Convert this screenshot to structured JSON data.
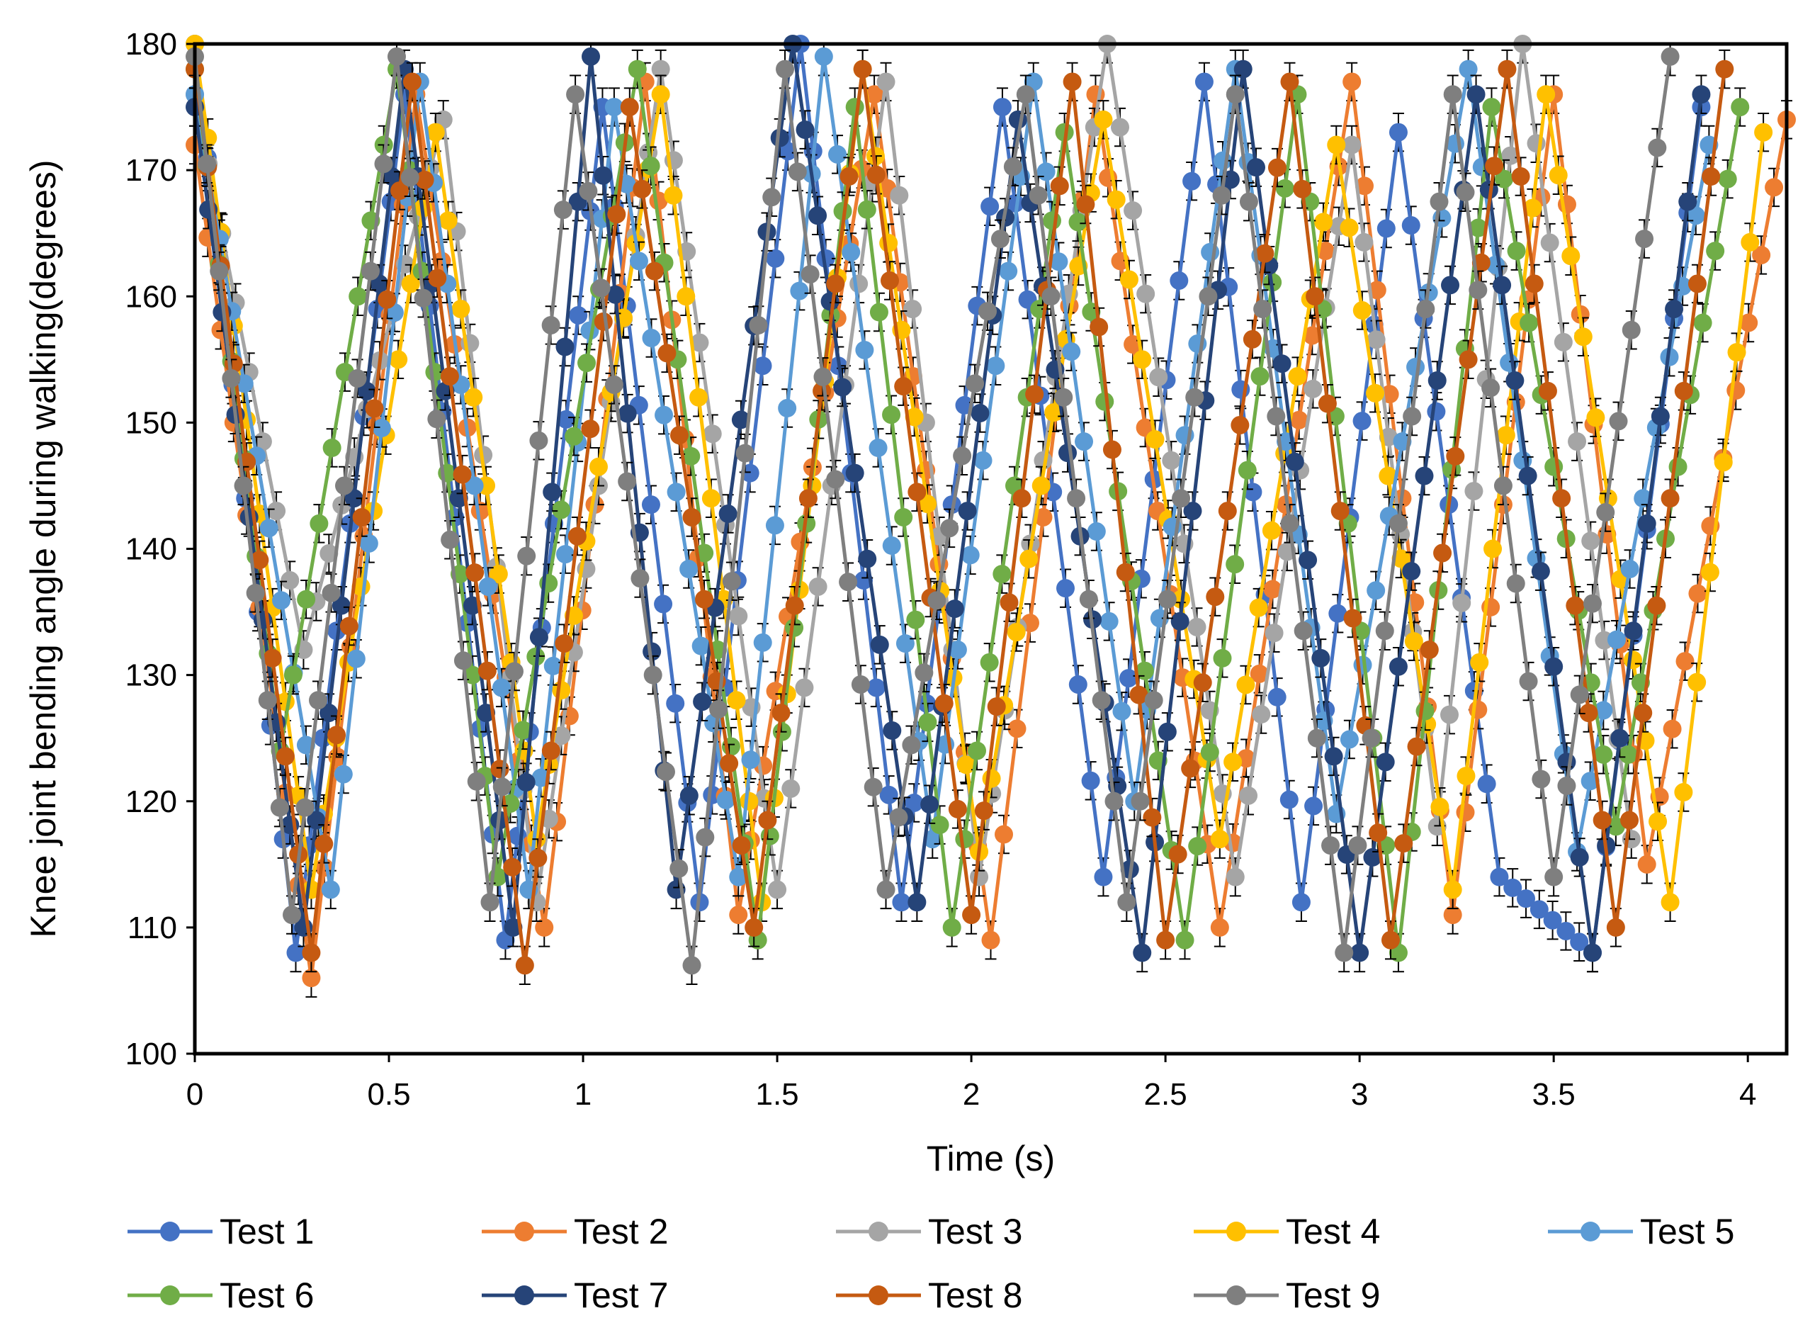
{
  "chart_data": {
    "type": "line",
    "title": "",
    "xlabel": "Time (s)",
    "ylabel": "Knee joint bending angle during walking(degrees)",
    "xlim": [
      0,
      4.1
    ],
    "ylim": [
      100,
      180
    ],
    "xticks": [
      0,
      0.5,
      1,
      1.5,
      2,
      2.5,
      3,
      3.5,
      4
    ],
    "xtick_labels": [
      "0",
      "0.5",
      "1",
      "1.5",
      "2",
      "2.5",
      "3",
      "3.5",
      "4"
    ],
    "yticks": [
      100,
      110,
      120,
      130,
      140,
      150,
      160,
      170,
      180
    ],
    "ytick_labels": [
      "100",
      "110",
      "120",
      "130",
      "140",
      "150",
      "160",
      "170",
      "180"
    ],
    "error_bar": 1.5,
    "legend_position": "bottom",
    "series": [
      {
        "name": "Test 1",
        "color": "#4472C4",
        "x": [
          0,
          0.26,
          0.54,
          0.8,
          1.05,
          1.3,
          1.56,
          1.82,
          2.08,
          2.34,
          2.6,
          2.85,
          3.1,
          3.36,
          3.6,
          3.88
        ],
        "y": [
          180,
          108,
          176,
          109,
          175,
          112,
          180,
          112,
          175,
          114,
          177,
          112,
          173,
          114,
          108,
          175
        ]
      },
      {
        "name": "Test 2",
        "color": "#ED7D31",
        "x": [
          0,
          0.3,
          0.57,
          0.9,
          1.16,
          1.4,
          1.75,
          2.05,
          2.32,
          2.64,
          2.98,
          3.24,
          3.5,
          3.74,
          4.1
        ],
        "y": [
          172,
          106,
          176,
          110,
          177,
          111,
          176,
          109,
          176,
          110,
          177,
          111,
          176,
          115,
          174
        ]
      },
      {
        "name": "Test 3",
        "color": "#A5A5A5",
        "x": [
          0,
          0.28,
          0.64,
          0.88,
          1.2,
          1.5,
          1.78,
          2.02,
          2.35,
          2.68,
          2.98,
          3.2,
          3.42,
          3.7
        ],
        "y": [
          176,
          132,
          174,
          112,
          178,
          113,
          177,
          114,
          180,
          114,
          172,
          118,
          180,
          117
        ]
      },
      {
        "name": "Test 4",
        "color": "#FFC000",
        "x": [
          0,
          0.3,
          0.62,
          0.88,
          1.2,
          1.46,
          1.72,
          2.02,
          2.34,
          2.64,
          2.94,
          3.24,
          3.48,
          3.8,
          4.04
        ],
        "y": [
          180,
          113,
          173,
          117,
          176,
          112,
          178,
          116,
          174,
          117,
          172,
          113,
          176,
          112,
          173
        ]
      },
      {
        "name": "Test 5",
        "color": "#5B9BD5",
        "x": [
          0,
          0.35,
          0.58,
          0.86,
          1.08,
          1.4,
          1.62,
          1.9,
          2.16,
          2.42,
          2.68,
          2.94,
          3.28,
          3.56,
          3.9
        ],
        "y": [
          176,
          113,
          177,
          113,
          175,
          114,
          179,
          117,
          177,
          120,
          178,
          119,
          178,
          116,
          172
        ]
      },
      {
        "name": "Test 6",
        "color": "#70AD47",
        "x": [
          0,
          0.22,
          0.52,
          0.78,
          1.14,
          1.45,
          1.7,
          1.95,
          2.24,
          2.55,
          2.84,
          3.1,
          3.34,
          3.66,
          3.98
        ],
        "y": [
          178,
          124,
          178,
          114,
          178,
          109,
          175,
          110,
          173,
          109,
          176,
          108,
          175,
          118,
          175
        ]
      },
      {
        "name": "Test 7",
        "color": "#264478",
        "x": [
          0,
          0.28,
          0.54,
          0.82,
          1.02,
          1.24,
          1.54,
          1.86,
          2.12,
          2.44,
          2.7,
          3.0,
          3.3,
          3.6,
          3.88
        ],
        "y": [
          175,
          110,
          178,
          110,
          179,
          113,
          180,
          112,
          174,
          108,
          178,
          108,
          176,
          108,
          176
        ]
      },
      {
        "name": "Test 8",
        "color": "#C55A11",
        "x": [
          0,
          0.3,
          0.56,
          0.85,
          1.12,
          1.44,
          1.72,
          2.0,
          2.26,
          2.5,
          2.82,
          3.08,
          3.38,
          3.66,
          3.94
        ],
        "y": [
          178,
          108,
          177,
          107,
          175,
          110,
          178,
          111,
          177,
          109,
          177,
          109,
          178,
          110,
          178
        ]
      },
      {
        "name": "Test 9",
        "color": "#7F7F7F",
        "x": [
          0,
          0.25,
          0.52,
          0.76,
          0.98,
          1.28,
          1.52,
          1.78,
          2.14,
          2.4,
          2.68,
          2.96,
          3.24,
          3.5,
          3.8
        ],
        "y": [
          179,
          111,
          179,
          112,
          176,
          107,
          178,
          113,
          176,
          112,
          176,
          108,
          176,
          114,
          179
        ]
      }
    ]
  }
}
